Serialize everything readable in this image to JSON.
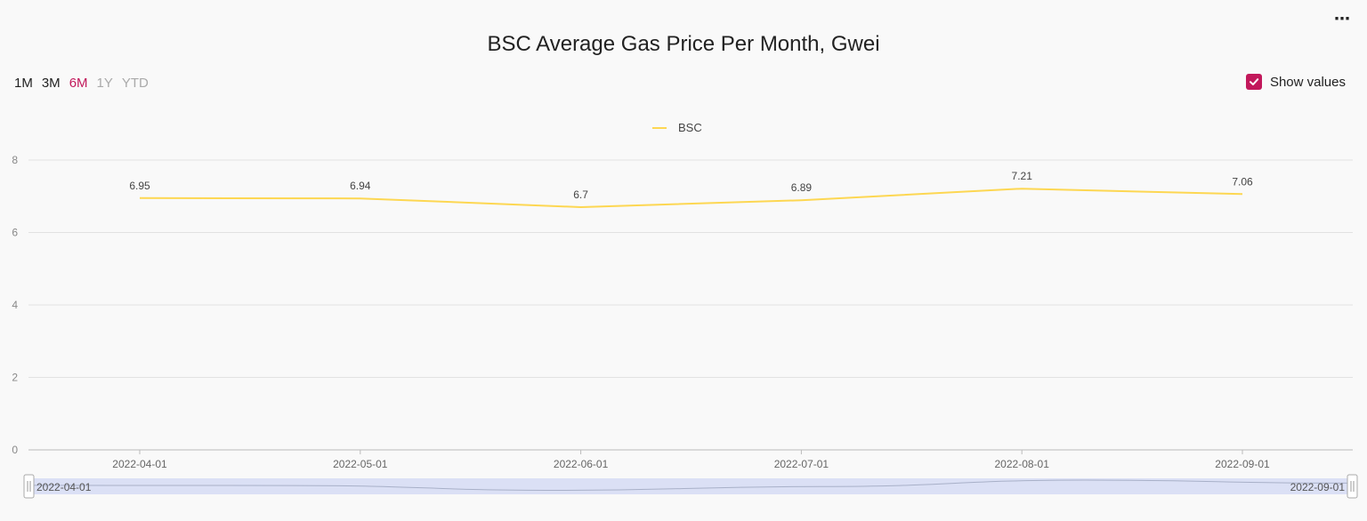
{
  "menu": {
    "label": "⋯"
  },
  "time_ranges": [
    {
      "label": "1M",
      "state": "normal"
    },
    {
      "label": "3M",
      "state": "normal"
    },
    {
      "label": "6M",
      "state": "active"
    },
    {
      "label": "1Y",
      "state": "disabled"
    },
    {
      "label": "YTD",
      "state": "disabled"
    }
  ],
  "show_values": {
    "label": "Show values",
    "checked": true
  },
  "colors": {
    "series": "#fdd752",
    "accent": "#c2185b",
    "slider_fill": "#dbe0f5"
  },
  "chart_data": {
    "type": "line",
    "title": "BSC Average Gas Price Per Month, Gwei",
    "categories": [
      "2022-04-01",
      "2022-05-01",
      "2022-06-01",
      "2022-07-01",
      "2022-08-01",
      "2022-09-01"
    ],
    "series": [
      {
        "name": "BSC",
        "values": [
          6.95,
          6.94,
          6.7,
          6.89,
          7.21,
          7.06
        ]
      }
    ],
    "ylim": [
      0,
      8
    ],
    "yticks": [
      0,
      2,
      4,
      6,
      8
    ],
    "legend": "top-center",
    "grid": true,
    "data_zoom": {
      "start_label": "2022-04-01",
      "end_label": "2022-09-01"
    }
  }
}
